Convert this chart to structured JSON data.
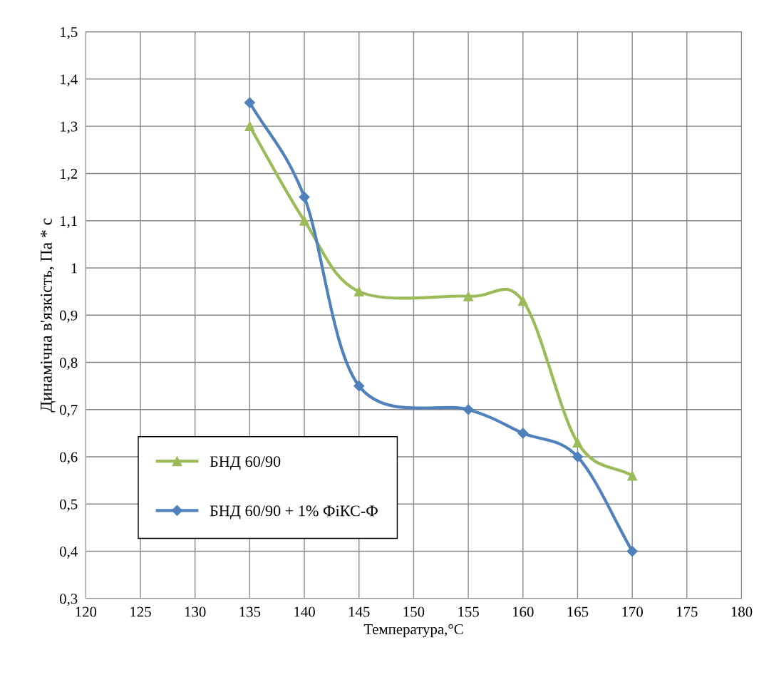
{
  "chart_data": {
    "type": "line",
    "xlabel": "Температура,°C",
    "ylabel": "Динамічна в'язкість, Па * с",
    "x": [
      135,
      140,
      145,
      155,
      160,
      165,
      170
    ],
    "series": [
      {
        "name": "БНД 60/90",
        "color": "#9bbb59",
        "marker": "triangle",
        "values": [
          1.3,
          1.1,
          0.95,
          0.94,
          0.93,
          0.63,
          0.56
        ]
      },
      {
        "name": "БНД 60/90 + 1% ФіКС-Ф",
        "color": "#4f81bd",
        "marker": "diamond",
        "values": [
          1.35,
          1.15,
          0.75,
          0.7,
          0.65,
          0.6,
          0.4
        ]
      }
    ],
    "xlim": [
      120,
      180
    ],
    "xticks": [
      120,
      125,
      130,
      135,
      140,
      145,
      150,
      155,
      160,
      165,
      170,
      175,
      180
    ],
    "ylim": [
      0.3,
      1.5
    ],
    "yticks": [
      {
        "value": 0.3,
        "label": "0,3"
      },
      {
        "value": 0.4,
        "label": "0,4"
      },
      {
        "value": 0.5,
        "label": "0,5"
      },
      {
        "value": 0.6,
        "label": "0,6"
      },
      {
        "value": 0.7,
        "label": "0,7"
      },
      {
        "value": 0.8,
        "label": "0,8"
      },
      {
        "value": 0.9,
        "label": "0,9"
      },
      {
        "value": 1,
        "label": "1"
      },
      {
        "value": 1.1,
        "label": "1,1"
      },
      {
        "value": 1.2,
        "label": "1,2"
      },
      {
        "value": 1.3,
        "label": "1,3"
      },
      {
        "value": 1.4,
        "label": "1,4"
      },
      {
        "value": 1.5,
        "label": "1,5"
      }
    ],
    "grid": true,
    "legend": "bottom left",
    "line_style": "solid"
  }
}
